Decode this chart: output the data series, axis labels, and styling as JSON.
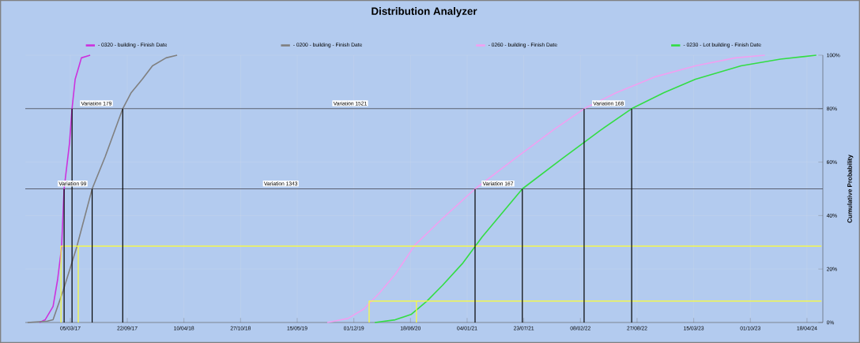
{
  "chart_data": {
    "type": "line",
    "title": "Distribution Analyzer",
    "ylabel": "Cumulative Probability",
    "xlim": [
      "2016-09-27",
      "2024-06-13"
    ],
    "xticks": [
      {
        "value": "2017-03-05",
        "label": "05/03/17"
      },
      {
        "value": "2017-09-22",
        "label": "22/09/17"
      },
      {
        "value": "2018-04-10",
        "label": "10/04/18"
      },
      {
        "value": "2018-10-27",
        "label": "27/10/18"
      },
      {
        "value": "2019-05-15",
        "label": "15/05/19"
      },
      {
        "value": "2019-12-01",
        "label": "01/12/19"
      },
      {
        "value": "2020-06-18",
        "label": "18/06/20"
      },
      {
        "value": "2021-01-04",
        "label": "04/01/21"
      },
      {
        "value": "2021-07-23",
        "label": "23/07/21"
      },
      {
        "value": "2022-02-08",
        "label": "08/02/22"
      },
      {
        "value": "2022-08-27",
        "label": "27/08/22"
      },
      {
        "value": "2023-03-15",
        "label": "15/03/23"
      },
      {
        "value": "2023-10-01",
        "label": "01/10/23"
      },
      {
        "value": "2024-04-18",
        "label": "18/04/24"
      }
    ],
    "ylim": [
      0,
      100
    ],
    "yticks": [
      {
        "value": 0,
        "label": "0%"
      },
      {
        "value": 20,
        "label": "20%"
      },
      {
        "value": 40,
        "label": "40%"
      },
      {
        "value": 60,
        "label": "60%"
      },
      {
        "value": 80,
        "label": "80%"
      },
      {
        "value": 100,
        "label": "100%"
      }
    ],
    "grid": true,
    "legend": "top",
    "series": [
      {
        "name": "- 0320 - building - Finish Date",
        "color": "#cc33dd",
        "x": [
          "2016-11-16",
          "2016-12-06",
          "2017-01-03",
          "2017-01-19",
          "2017-02-02",
          "2017-02-11",
          "2017-03-02",
          "2017-03-11",
          "2017-03-22",
          "2017-04-05",
          "2017-04-13",
          "2017-05-14"
        ],
        "values": [
          0,
          1,
          6,
          16,
          28,
          50,
          67,
          80,
          91,
          96,
          99,
          100
        ]
      },
      {
        "name": "- 0200 - building - Finish Date",
        "color": "#808080",
        "x": [
          "2016-10-05",
          "2016-12-14",
          "2017-01-03",
          "2017-02-08",
          "2017-03-27",
          "2017-05-21",
          "2017-07-06",
          "2017-09-06",
          "2017-10-06",
          "2017-11-14",
          "2017-12-20",
          "2018-02-06",
          "2018-03-17"
        ],
        "values": [
          0,
          0.5,
          1,
          12,
          28,
          50,
          62,
          80,
          86,
          91,
          96,
          99,
          100
        ]
      },
      {
        "name": "- 0260 - building - Finish Date",
        "color": "#f0a0f0",
        "x": [
          "2019-08-29",
          "2019-11-10",
          "2020-01-05",
          "2020-02-29",
          "2020-04-25",
          "2020-07-04",
          "2020-10-10",
          "2021-02-01",
          "2021-06-18",
          "2021-11-04",
          "2022-02-21",
          "2022-06-15",
          "2022-11-02",
          "2023-03-21",
          "2023-08-09",
          "2023-11-21"
        ],
        "values": [
          0,
          1.5,
          5,
          11,
          18,
          29,
          39,
          50,
          61,
          72,
          80,
          86,
          92,
          96,
          99,
          100
        ]
      },
      {
        "name": "- 0230 - Lot building - Finish Date",
        "color": "#33dd44",
        "x": [
          "2020-02-13",
          "2020-04-25",
          "2020-06-20",
          "2020-08-15",
          "2020-10-10",
          "2020-12-18",
          "2021-02-26",
          "2021-07-18",
          "2021-12-02",
          "2022-04-21",
          "2022-08-08",
          "2022-11-30",
          "2023-03-21",
          "2023-08-29",
          "2024-01-15",
          "2024-05-21"
        ],
        "values": [
          0,
          1,
          3,
          8,
          14,
          22,
          32,
          50,
          61,
          72,
          80,
          86,
          91,
          96,
          98.5,
          100
        ]
      },
      {
        "color": "#ffff33",
        "x": [
          "2017-01-31",
          "2017-01-31",
          "2024-06-08"
        ],
        "values": [
          0,
          28.6,
          28.6
        ]
      },
      {
        "color": "#ffff33",
        "x": [
          "2017-04-02",
          "2017-04-02"
        ],
        "values": [
          0,
          28.6
        ]
      },
      {
        "color": "#ffff33",
        "x": [
          "2020-01-24",
          "2020-01-24",
          "2024-06-08"
        ],
        "values": [
          0,
          8,
          8
        ]
      },
      {
        "color": "#ffff33",
        "x": [
          "2020-07-09",
          "2020-07-09"
        ],
        "values": [
          0,
          8
        ]
      },
      {
        "color": "#000000",
        "x": [
          "2017-03-11",
          "2017-03-11"
        ],
        "values": [
          80,
          0
        ]
      },
      {
        "color": "#000000",
        "x": [
          "2017-09-06",
          "2017-09-06"
        ],
        "values": [
          80,
          0
        ]
      },
      {
        "color": "#000000",
        "x": [
          "2022-02-21",
          "2022-02-21"
        ],
        "values": [
          80,
          0
        ]
      },
      {
        "color": "#000000",
        "x": [
          "2022-08-08",
          "2022-08-08"
        ],
        "values": [
          80,
          0
        ]
      },
      {
        "color": "#000000",
        "x": [
          "2017-02-11",
          "2017-02-11"
        ],
        "values": [
          50,
          0
        ]
      },
      {
        "color": "#000000",
        "x": [
          "2017-05-21",
          "2017-05-21"
        ],
        "values": [
          50,
          0
        ]
      },
      {
        "color": "#000000",
        "x": [
          "2021-02-01",
          "2021-02-01"
        ],
        "values": [
          50,
          0
        ]
      },
      {
        "color": "#000000",
        "x": [
          "2021-07-18",
          "2021-07-18"
        ],
        "values": [
          50,
          0
        ]
      }
    ],
    "ref_lines": [
      {
        "axis": "y",
        "value": 80,
        "color": "#5a6070"
      },
      {
        "axis": "y",
        "value": 50,
        "color": "#5a6070"
      }
    ],
    "annotations": [
      {
        "text": "Variation 179",
        "x": "2017-06-05",
        "y": 80
      },
      {
        "text": "Variation 1521",
        "x": "2019-11-18",
        "y": 80
      },
      {
        "text": "Variation 168",
        "x": "2022-05-18",
        "y": 80
      },
      {
        "text": "Variation 99",
        "x": "2017-03-13",
        "y": 50
      },
      {
        "text": "Variation 1343",
        "x": "2019-03-18",
        "y": 50
      },
      {
        "text": "Variation 167",
        "x": "2021-04-23",
        "y": 50
      }
    ]
  }
}
